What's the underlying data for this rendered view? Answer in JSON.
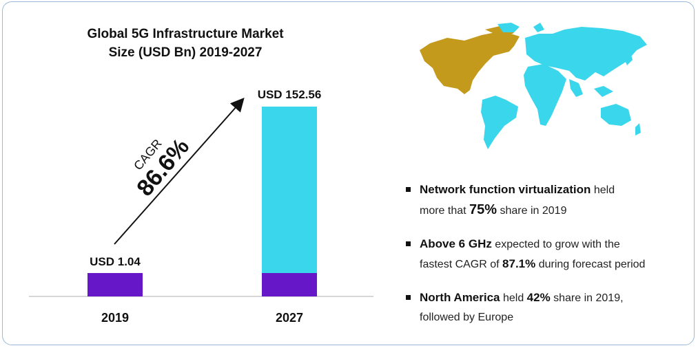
{
  "title_line1": "Global 5G Infrastructure Market",
  "title_line2": "Size (USD Bn) 2019-2027",
  "cagr": {
    "label": "CAGR",
    "value": "86.6%"
  },
  "chart_data": {
    "type": "bar",
    "categories": [
      "2019",
      "2027"
    ],
    "value_labels": [
      "USD 1.04",
      "USD 152.56"
    ],
    "values": [
      1.04,
      152.56
    ],
    "colors": {
      "base": "#6618c9",
      "growth": "#3ad6ec"
    }
  },
  "map_colors": {
    "americas": "#c49a1c",
    "rest_of_world": "#3ad6ec"
  },
  "bullets": [
    {
      "strong": "Network function virtualization",
      "t1": " held",
      "t2": "more that ",
      "big": "75%",
      "t3": " share in 2019"
    },
    {
      "strong": "Above 6 GHz",
      "t1": " expected to grow with the",
      "t2": "fastest CAGR of ",
      "big": "87.1%",
      "t3": " during forecast period"
    },
    {
      "strong": "North America",
      "t1": " held ",
      "big": "42%",
      "t2": " share in 2019,",
      "t3": "followed by Europe"
    }
  ]
}
